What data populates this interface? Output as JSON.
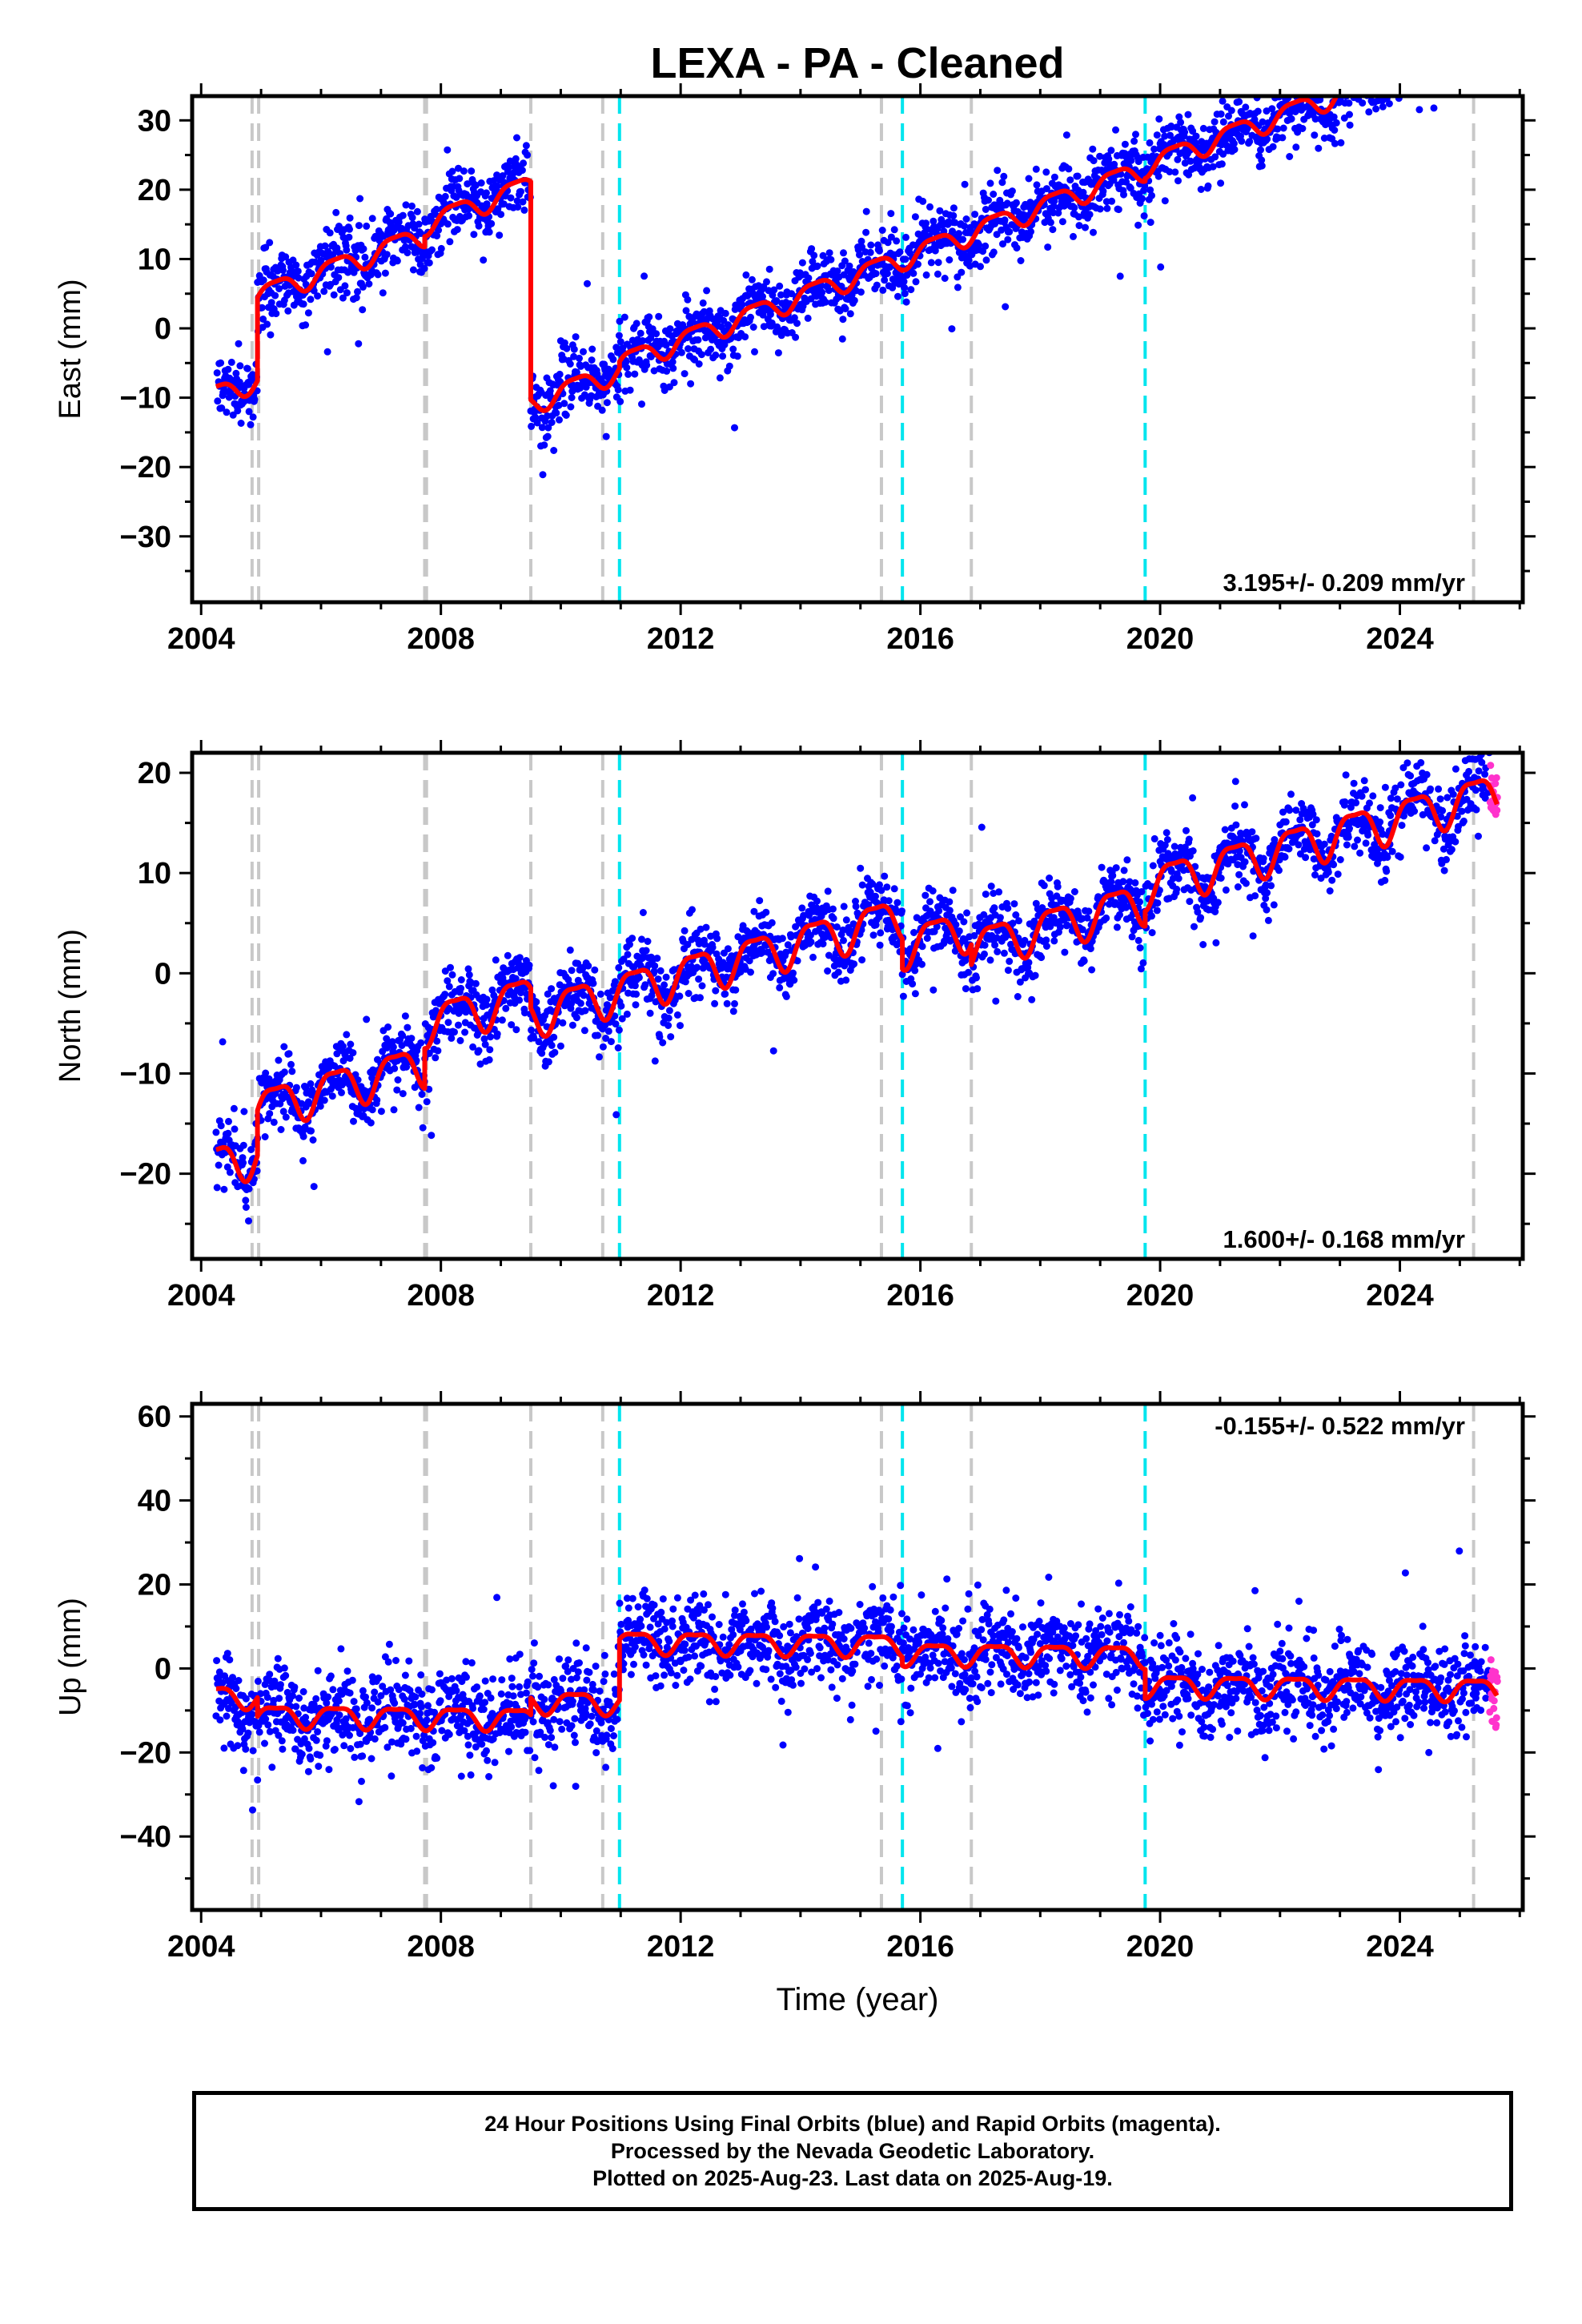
{
  "title": "LEXA  - PA - Cleaned",
  "footer": {
    "line1": "24 Hour Positions Using Final Orbits (blue) and Rapid Orbits (magenta).",
    "line2": "Processed by the Nevada Geodetic Laboratory.",
    "line3": "Plotted on 2025-Aug-23. Last data on 2025-Aug-19."
  },
  "colors": {
    "final_orbits": "#0000ff",
    "rapid_orbits": "#ff33cc",
    "model": "#ff0000",
    "equipment_change": "#c8c8c8",
    "earthquake": "#00e5ee"
  },
  "chart_data": [
    {
      "type": "scatter",
      "ylabel": "East (mm)",
      "xlim": [
        2003.85,
        2026.05
      ],
      "ylim": [
        -39.5,
        33.5
      ],
      "x_ticks": [
        2004,
        2008,
        2012,
        2016,
        2020,
        2024
      ],
      "y_ticks": [
        -30,
        -20,
        -10,
        0,
        10,
        20,
        30
      ],
      "rate_label": "3.195+/- 0.209 mm/yr",
      "rate_position": "bottom-right",
      "model": {
        "rate": 3.195,
        "a1": 1.5,
        "a2": 0.4,
        "segments": [
          {
            "start": 2004.25,
            "end": 2004.94,
            "offset": -9.5
          },
          {
            "start": 2004.94,
            "end": 2007.73,
            "offset": 2.5
          },
          {
            "start": 2007.73,
            "end": 2009.5,
            "offset": 4.0
          },
          {
            "start": 2009.5,
            "end": 2010.98,
            "offset": -27.5
          },
          {
            "start": 2010.98,
            "end": 2015.7,
            "offset": -26.5
          },
          {
            "start": 2015.7,
            "end": 2019.75,
            "offset": -26.4
          },
          {
            "start": 2019.75,
            "end": 2025.62,
            "offset": -26.0
          }
        ]
      },
      "scatter_sigma": 2.4
    },
    {
      "type": "scatter",
      "ylabel": "North (mm)",
      "xlim": [
        2003.85,
        2026.05
      ],
      "ylim": [
        -28.5,
        22
      ],
      "x_ticks": [
        2004,
        2008,
        2012,
        2016,
        2020,
        2024
      ],
      "y_ticks": [
        -20,
        -10,
        0,
        10,
        20
      ],
      "rate_label": "1.600+/- 0.168 mm/yr",
      "rate_position": "bottom-right",
      "model": {
        "rate": 1.6,
        "a1": 2.0,
        "a2": 0.6,
        "segments": [
          {
            "start": 2004.25,
            "end": 2004.94,
            "offset": -19.0
          },
          {
            "start": 2004.94,
            "end": 2007.73,
            "offset": -14.5
          },
          {
            "start": 2007.73,
            "end": 2009.5,
            "offset": -10.5
          },
          {
            "start": 2009.5,
            "end": 2015.7,
            "offset": -12.5
          },
          {
            "start": 2015.7,
            "end": 2016.85,
            "offset": -15.5
          },
          {
            "start": 2016.85,
            "end": 2019.75,
            "offset": -17.5
          },
          {
            "start": 2019.75,
            "end": 2025.62,
            "offset": -16.0
          }
        ]
      },
      "scatter_sigma": 1.7
    },
    {
      "type": "scatter",
      "ylabel": "Up (mm)",
      "xlim": [
        2003.85,
        2026.05
      ],
      "ylim": [
        -57.5,
        63
      ],
      "x_ticks": [
        2004,
        2008,
        2012,
        2016,
        2020,
        2024
      ],
      "y_ticks": [
        -40,
        -20,
        0,
        20,
        40,
        60
      ],
      "xlabel": "Time (year)",
      "rate_label": "-0.155+/- 0.522 mm/yr",
      "rate_position": "top-right",
      "model": {
        "rate": -0.155,
        "a1": 2.5,
        "a2": 0.8,
        "segments": [
          {
            "start": 2004.25,
            "end": 2004.94,
            "offset": -6.5
          },
          {
            "start": 2004.94,
            "end": 2009.5,
            "offset": -11.0
          },
          {
            "start": 2009.5,
            "end": 2010.98,
            "offset": -7.0
          },
          {
            "start": 2010.98,
            "end": 2015.7,
            "offset": 7.5
          },
          {
            "start": 2015.7,
            "end": 2019.75,
            "offset": 5.5
          },
          {
            "start": 2019.75,
            "end": 2025.62,
            "offset": -1.5
          }
        ]
      },
      "scatter_sigma": 5.2
    }
  ],
  "equipment_changes": [
    2004.85,
    2004.96,
    2007.73,
    2007.76,
    2009.5,
    2010.7,
    2015.35,
    2016.85,
    2025.23
  ],
  "earthquakes": [
    2010.98,
    2015.7,
    2019.75
  ],
  "data_span": {
    "start": 2004.25,
    "end": 2025.63,
    "rapid_start": 2025.5
  }
}
